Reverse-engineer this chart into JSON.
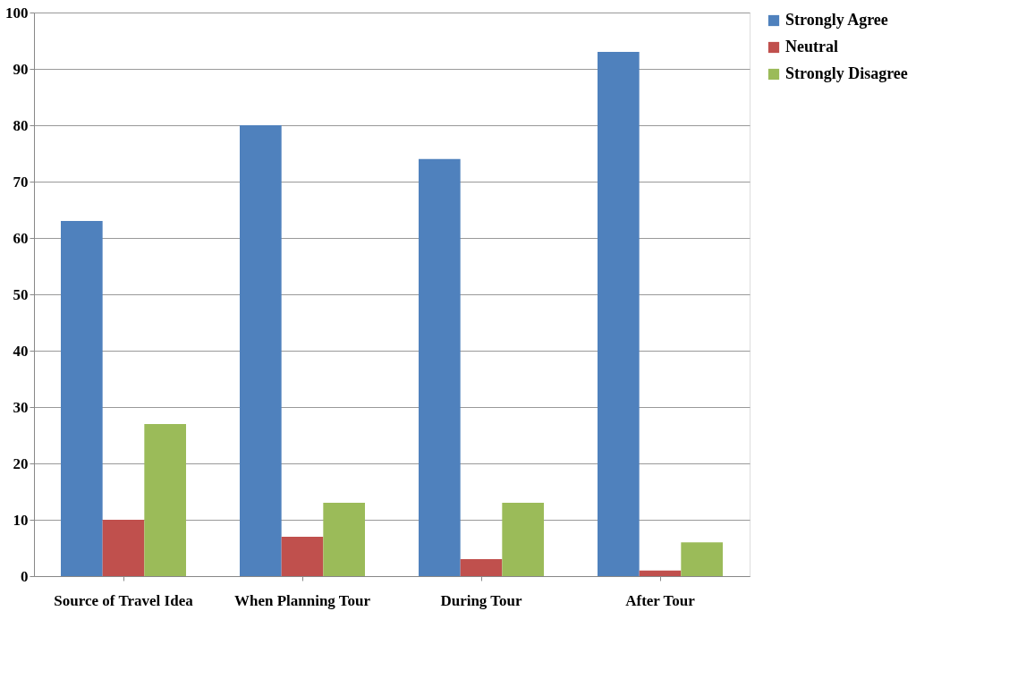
{
  "chart_data": {
    "type": "bar",
    "categories": [
      "Source of Travel Idea",
      "When Planning Tour",
      "During Tour",
      "After Tour"
    ],
    "series": [
      {
        "name": "Strongly Agree",
        "color": "#4f81bd",
        "values": [
          63,
          80,
          74,
          93
        ]
      },
      {
        "name": "Neutral",
        "color": "#c0504d",
        "values": [
          10,
          7,
          3,
          1
        ]
      },
      {
        "name": "Strongly Disagree",
        "color": "#9bbb59",
        "values": [
          27,
          13,
          13,
          6
        ]
      }
    ],
    "ylim": [
      0,
      100
    ],
    "yticks": [
      0,
      10,
      20,
      30,
      40,
      50,
      60,
      70,
      80,
      90,
      100
    ],
    "grid": "y",
    "legend": "right"
  }
}
